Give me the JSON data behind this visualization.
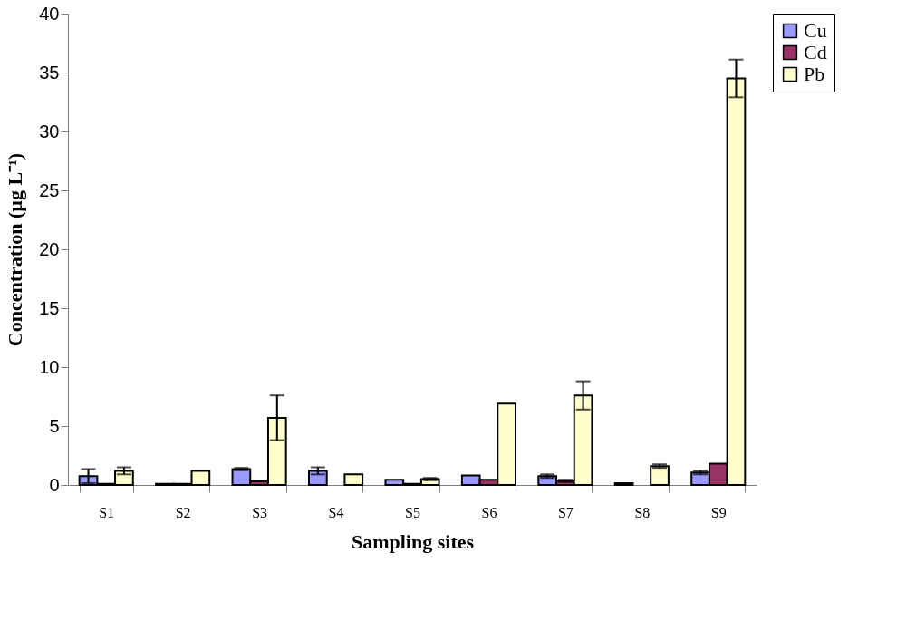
{
  "chart_data": {
    "type": "bar",
    "xlabel": "Sampling sites",
    "ylabel": "Concentration (µg L⁻¹)",
    "categories": [
      "S1",
      "S2",
      "S3",
      "S4",
      "S5",
      "S6",
      "S7",
      "S8",
      "S9"
    ],
    "series": [
      {
        "name": "Cu",
        "color": "#9999ff",
        "values": [
          0.75,
          0.1,
          1.35,
          1.2,
          0.45,
          0.8,
          0.75,
          0.15,
          1.05
        ],
        "errors": [
          0.6,
          null,
          0.1,
          0.3,
          null,
          null,
          0.15,
          null,
          0.15
        ]
      },
      {
        "name": "Cd",
        "color": "#993366",
        "values": [
          0.1,
          0.1,
          0.3,
          null,
          0.1,
          0.45,
          0.35,
          null,
          1.8
        ],
        "errors": [
          null,
          null,
          null,
          null,
          null,
          null,
          0.1,
          null,
          null
        ]
      },
      {
        "name": "Pb",
        "color": "#ffffcc",
        "values": [
          1.2,
          1.2,
          5.7,
          0.9,
          0.5,
          6.9,
          7.6,
          1.6,
          34.5
        ],
        "errors": [
          0.3,
          null,
          1.9,
          null,
          0.1,
          null,
          1.2,
          0.15,
          1.6
        ]
      }
    ],
    "ylim": [
      0,
      40
    ],
    "yticks": [
      0,
      5,
      10,
      15,
      20,
      25,
      30,
      35,
      40
    ],
    "grid": false,
    "legend": "top right"
  }
}
